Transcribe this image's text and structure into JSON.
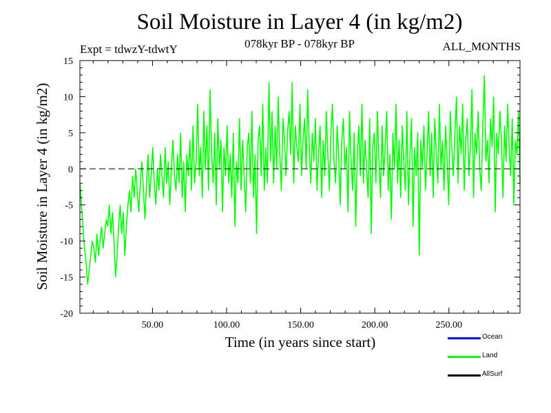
{
  "chart_data": {
    "type": "line",
    "title": "Soil Moisture in Layer 4 (in kg/m2)",
    "subtitle_left": "Expt = tdwzY-tdwtY",
    "subtitle_center": "078kyr BP - 078kyr BP",
    "subtitle_right": "ALL_MONTHS",
    "xlabel": "Time (in years since start)",
    "ylabel": "Soil Moisture in Layer 4 (in kg/m2)",
    "xlim": [
      1,
      298
    ],
    "ylim": [
      -20,
      15
    ],
    "x_ticks": [
      50,
      100,
      150,
      200,
      250
    ],
    "x_tick_labels": [
      "50.00",
      "100.00",
      "150.00",
      "200.00",
      "250.00"
    ],
    "y_ticks": [
      -20,
      -15,
      -10,
      -5,
      0,
      5,
      10,
      15
    ],
    "y_tick_labels": [
      "-20",
      "-15",
      "-10",
      "-5",
      "0",
      "5",
      "10",
      "15"
    ],
    "reference_line": 0,
    "series": [
      {
        "name": "Land",
        "color": "#00ff00",
        "x_start": 1,
        "x_end": 298,
        "values": [
          -2,
          -5,
          -8,
          -11,
          -13,
          -16,
          -14,
          -12,
          -10,
          -11,
          -13,
          -9,
          -12,
          -10,
          -8,
          -11,
          -9,
          -7,
          -8,
          -5,
          -9,
          -6,
          -10,
          -15,
          -12,
          -8,
          -5,
          -9,
          -6,
          -12,
          -8,
          -5,
          -3,
          -6,
          -1,
          -4,
          0,
          -3,
          -6,
          -2,
          1,
          -3,
          -7,
          -2,
          2,
          -4,
          -1,
          3,
          -2,
          -5,
          0,
          -3,
          2,
          -1,
          -4,
          3,
          -2,
          1,
          -5,
          0,
          4,
          -1,
          -3,
          2,
          -2,
          5,
          -4,
          1,
          -6,
          2,
          -1,
          4,
          -3,
          6,
          -2,
          1,
          9,
          -1,
          3,
          -4,
          8,
          0,
          6,
          -3,
          11,
          2,
          -2,
          5,
          -5,
          7,
          0,
          4,
          -6,
          3,
          -1,
          6,
          -2,
          2,
          -4,
          5,
          -8,
          1,
          -2,
          7,
          -3,
          4,
          -1,
          -6,
          3,
          5,
          -2,
          8,
          -4,
          2,
          -9,
          4,
          6,
          -1,
          9,
          -3,
          3,
          -2,
          12,
          1,
          8,
          -2,
          6,
          0,
          10,
          2,
          -3,
          7,
          4,
          -1,
          5,
          8,
          2,
          12,
          -2,
          6,
          3,
          1,
          9,
          -1,
          4,
          7,
          0,
          11,
          3,
          -2,
          5,
          1,
          7,
          -3,
          2,
          6,
          -4,
          4,
          -1,
          8,
          2,
          -3,
          5,
          9,
          1,
          -2,
          6,
          2,
          -5,
          4,
          7,
          0,
          3,
          -6,
          8,
          1,
          -3,
          5,
          -8,
          2,
          6,
          -1,
          9,
          -2,
          4,
          0,
          -4,
          7,
          -9,
          3,
          5,
          -2,
          8,
          1,
          -4,
          6,
          -1,
          3,
          8,
          -3,
          2,
          -7,
          5,
          0,
          9,
          -2,
          4,
          -4,
          6,
          1,
          -3,
          8,
          -5,
          2,
          7,
          -8,
          3,
          -1,
          5,
          -12,
          4,
          0,
          6,
          -3,
          2,
          8,
          -1,
          5,
          -4,
          7,
          2,
          -2,
          9,
          0,
          4,
          -3,
          6,
          1,
          -5,
          8,
          3,
          -1,
          5,
          10,
          -2,
          6,
          2,
          9,
          -3,
          4,
          7,
          -1,
          3,
          11,
          -4,
          5,
          2,
          8,
          0,
          -3,
          6,
          13,
          1,
          4,
          -2,
          7,
          3,
          10,
          -6,
          5,
          2,
          8,
          4,
          -4,
          6,
          1,
          9,
          3,
          -1,
          7,
          -5,
          4,
          2,
          8,
          -2
        ]
      }
    ],
    "legend": [
      {
        "label": "Ocean",
        "color": "#0000ff"
      },
      {
        "label": "Land",
        "color": "#00ff00"
      },
      {
        "label": "AllSurf",
        "color": "#000000"
      }
    ]
  }
}
